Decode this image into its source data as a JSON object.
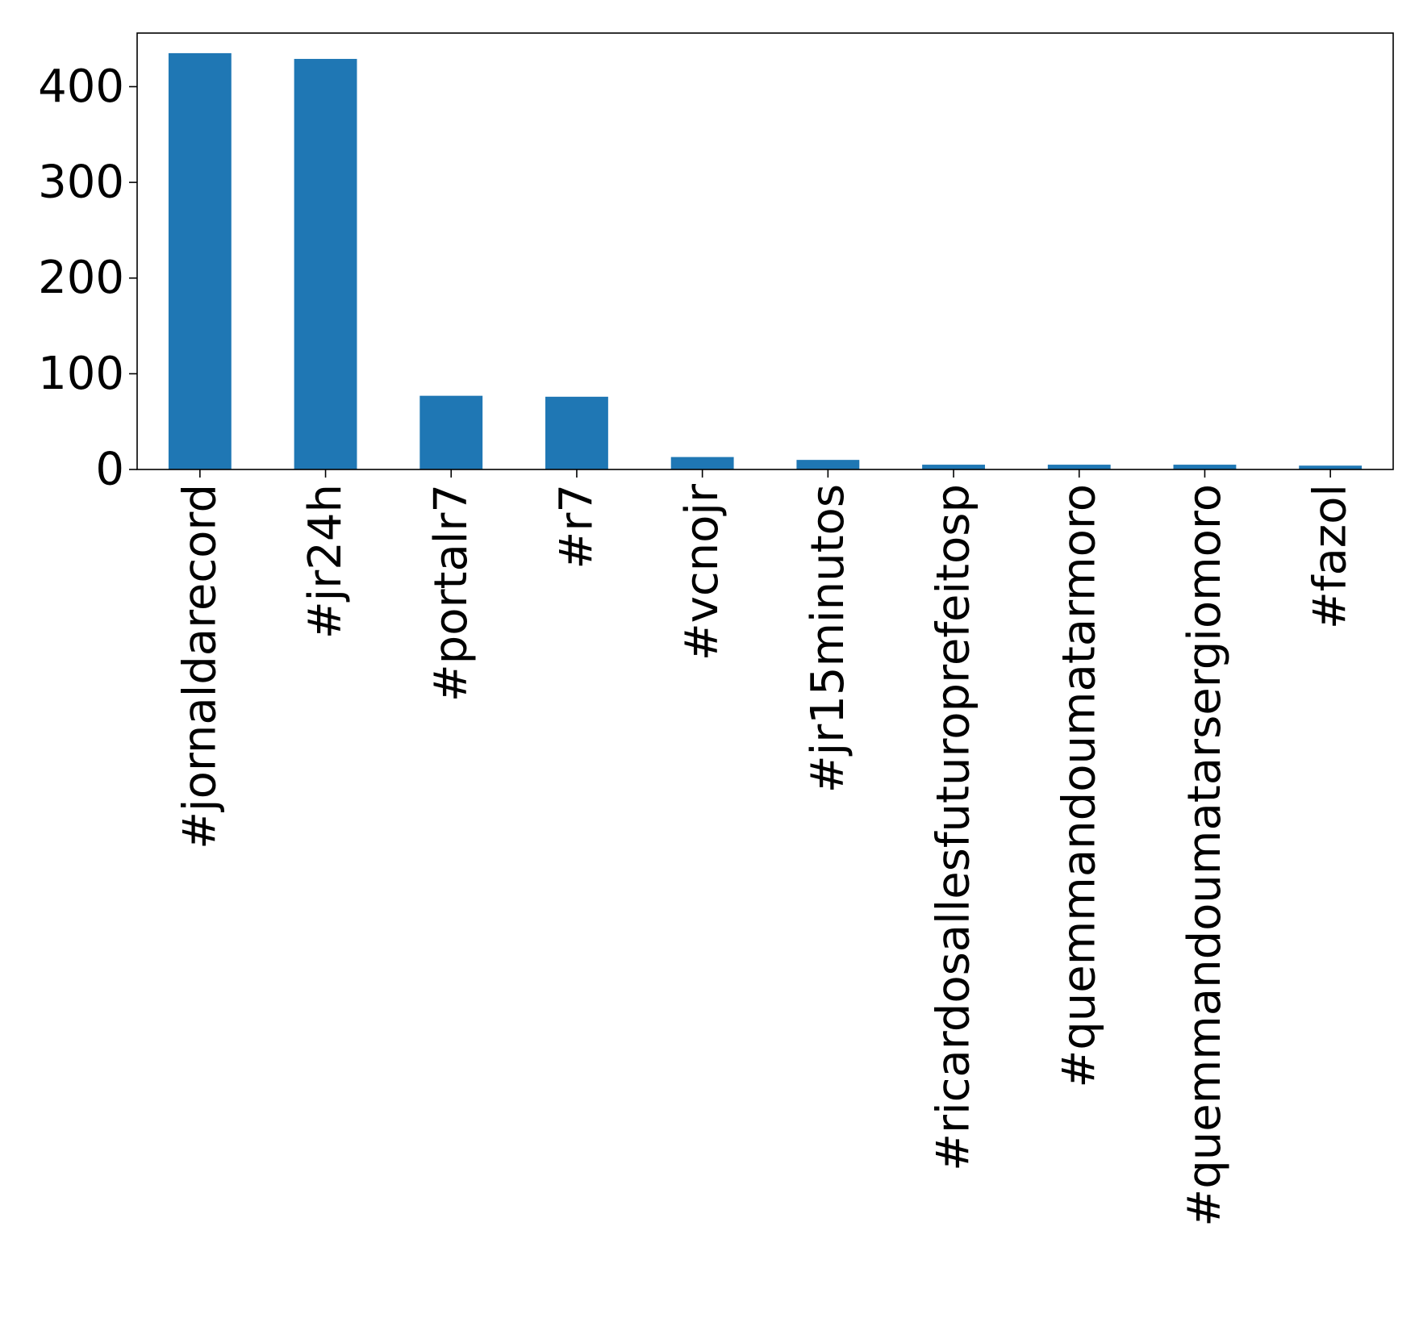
{
  "chart_data": {
    "type": "bar",
    "title": "",
    "xlabel": "",
    "ylabel": "",
    "categories": [
      "#jornaldarecord",
      "#jr24h",
      "#portalr7",
      "#r7",
      "#vcnojr",
      "#jr15minutos",
      "#ricardosallesfuturoprefeitosp",
      "#quemmandoumatarmoro",
      "#quemmandoumatarsergiomoro",
      "#fazol"
    ],
    "values": [
      435,
      429,
      77,
      76,
      13,
      10,
      5,
      5,
      5,
      4
    ],
    "ylim": [
      0,
      456
    ],
    "yticks": [
      0,
      100,
      200,
      300,
      400
    ],
    "grid": false,
    "legend": "none",
    "bar_color": "#1f77b4"
  }
}
